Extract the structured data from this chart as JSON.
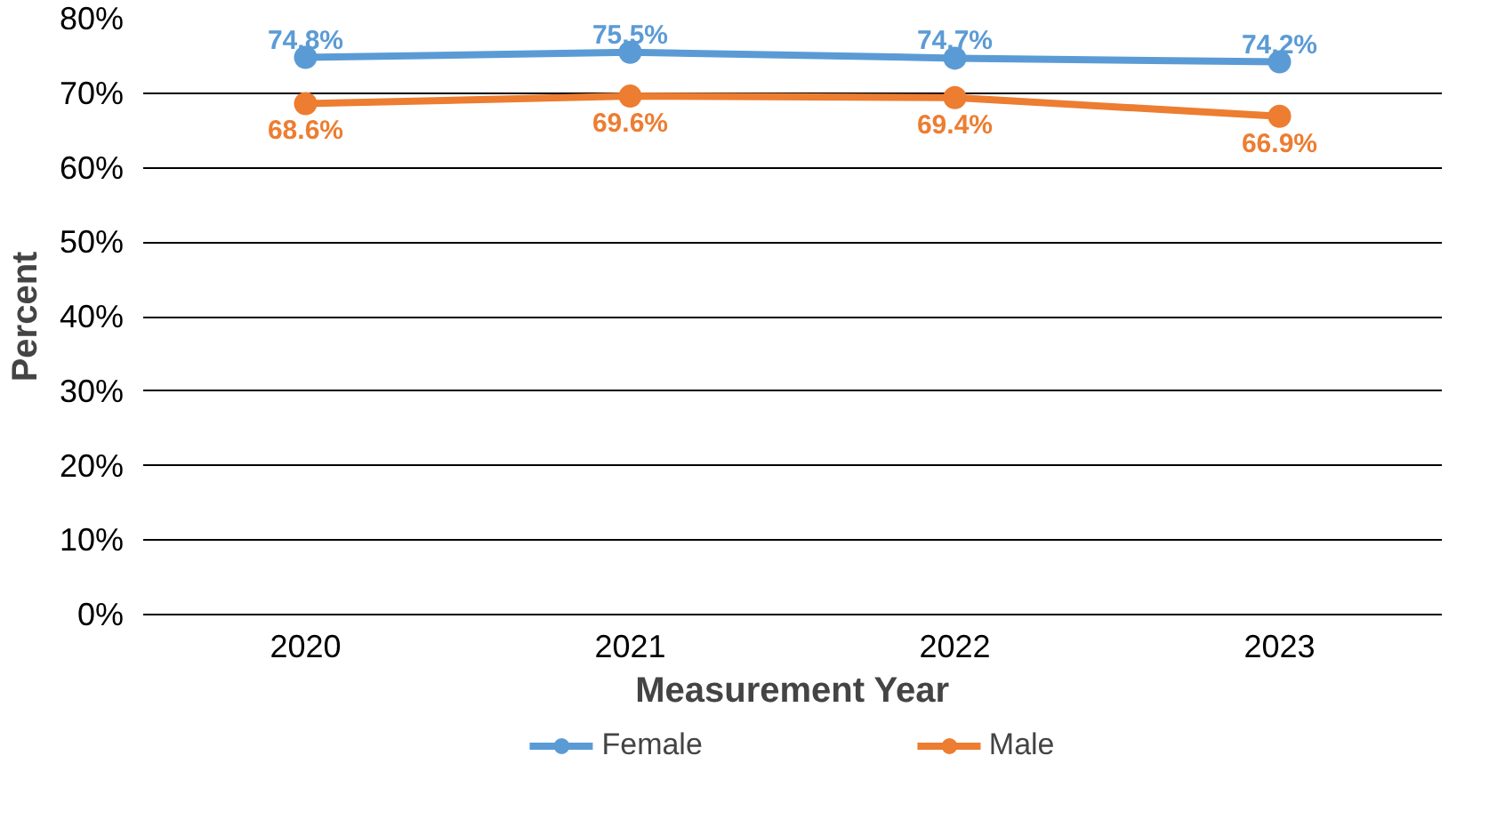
{
  "chart_data": {
    "type": "line",
    "xlabel": "Measurement Year",
    "ylabel": "Percent",
    "categories": [
      "2020",
      "2021",
      "2022",
      "2023"
    ],
    "series": [
      {
        "name": "Female",
        "color": "#5b9bd5",
        "values": [
          74.8,
          75.5,
          74.7,
          74.2
        ],
        "value_labels": [
          "74.8%",
          "75.5%",
          "74.7%",
          "74.2%"
        ]
      },
      {
        "name": "Male",
        "color": "#ed7d31",
        "values": [
          68.6,
          69.6,
          69.4,
          66.9
        ],
        "value_labels": [
          "68.6%",
          "69.6%",
          "69.4%",
          "66.9%"
        ]
      }
    ],
    "ylim": [
      0,
      80
    ],
    "yticks": [
      {
        "value": 0,
        "label": "0%"
      },
      {
        "value": 10,
        "label": "10%"
      },
      {
        "value": 20,
        "label": "20%"
      },
      {
        "value": 30,
        "label": "30%"
      },
      {
        "value": 40,
        "label": "40%"
      },
      {
        "value": 50,
        "label": "50%"
      },
      {
        "value": 60,
        "label": "60%"
      },
      {
        "value": 70,
        "label": "70%"
      },
      {
        "value": 80,
        "label": "80%"
      }
    ],
    "grid": "y",
    "legend": "bottom",
    "marker": "circle",
    "line_style": "solid"
  }
}
